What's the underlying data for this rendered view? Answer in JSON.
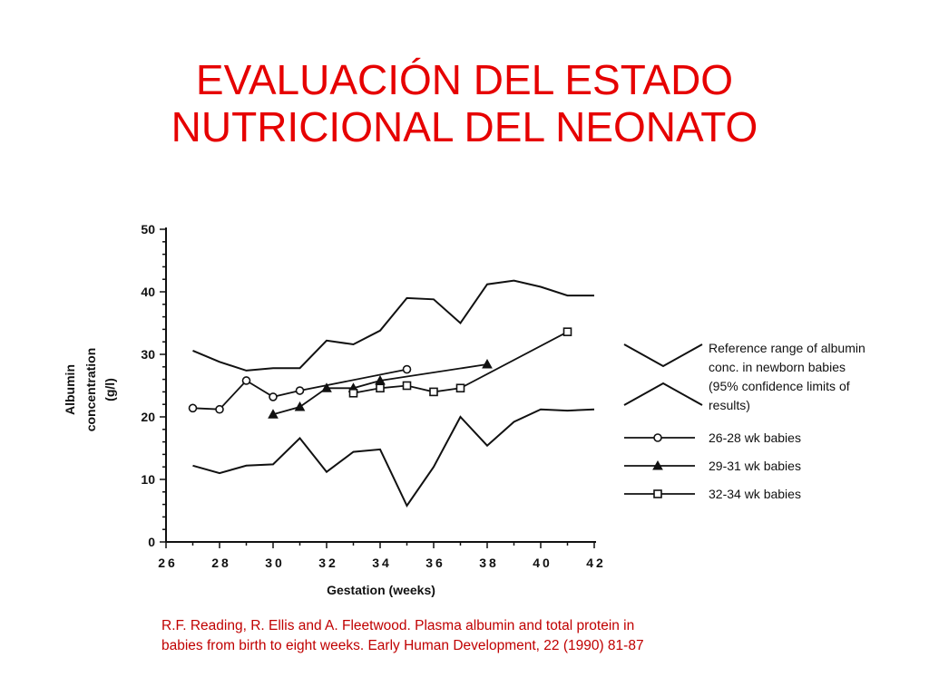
{
  "slide": {
    "title_line1": "EVALUACIÓN DEL ESTADO",
    "title_line2": "NUTRICIONAL DEL NEONATO",
    "citation_line1": "R.F. Reading, R. Ellis and A. Fleetwood. Plasma albumin and total protein in",
    "citation_line2": "babies from birth to eight weeks. Early Human Development, 22 (1990) 81-87",
    "title_color": "#e60000",
    "citation_color": "#c00000"
  },
  "chart_data": {
    "type": "line",
    "xlabel": "Gestation (weeks)",
    "ylabel_lines": [
      "Albumin",
      "concentration",
      "(g/l)"
    ],
    "xlim": [
      26,
      42
    ],
    "ylim": [
      0,
      50
    ],
    "xticks": [
      26,
      28,
      30,
      32,
      34,
      36,
      38,
      40,
      42
    ],
    "yticks": [
      0,
      10,
      20,
      30,
      40,
      50
    ],
    "grid": false,
    "legend_position": "right",
    "reference_range": {
      "label_lines": [
        "Reference range of albumin",
        "conc. in newborn babies",
        "(95% confidence limits of",
        "results)"
      ],
      "upper": [
        [
          27,
          30.6
        ],
        [
          28,
          28.8
        ],
        [
          29,
          27.4
        ],
        [
          30,
          27.8
        ],
        [
          31,
          27.8
        ],
        [
          32,
          32.2
        ],
        [
          33,
          31.6
        ],
        [
          34,
          33.8
        ],
        [
          35,
          39.0
        ],
        [
          36,
          38.8
        ],
        [
          37,
          35.0
        ],
        [
          38,
          41.2
        ],
        [
          39,
          41.8
        ],
        [
          40,
          40.8
        ],
        [
          41,
          39.4
        ],
        [
          42,
          39.4
        ]
      ],
      "lower": [
        [
          27,
          12.2
        ],
        [
          28,
          11.0
        ],
        [
          29,
          12.2
        ],
        [
          30,
          12.4
        ],
        [
          31,
          16.6
        ],
        [
          32,
          11.2
        ],
        [
          33,
          14.4
        ],
        [
          34,
          14.8
        ],
        [
          35,
          5.8
        ],
        [
          36,
          12.0
        ],
        [
          37,
          20.0
        ],
        [
          38,
          15.4
        ],
        [
          39,
          19.2
        ],
        [
          40,
          21.2
        ],
        [
          41,
          21.0
        ],
        [
          42,
          21.2
        ]
      ]
    },
    "series": [
      {
        "name": "26-28 wk babies",
        "marker": "circle",
        "points": [
          [
            27,
            21.4
          ],
          [
            28,
            21.2
          ],
          [
            29,
            25.8
          ],
          [
            30,
            23.2
          ],
          [
            31,
            24.2
          ],
          [
            35,
            27.6
          ]
        ]
      },
      {
        "name": "29-31 wk babies",
        "marker": "triangle",
        "points": [
          [
            30,
            20.4
          ],
          [
            31,
            21.6
          ],
          [
            32,
            24.6
          ],
          [
            33,
            24.6
          ],
          [
            34,
            25.8
          ],
          [
            38,
            28.4
          ]
        ]
      },
      {
        "name": "32-34 wk babies",
        "marker": "square",
        "points": [
          [
            33,
            23.8
          ],
          [
            34,
            24.6
          ],
          [
            35,
            25.0
          ],
          [
            36,
            24.0
          ],
          [
            37,
            24.6
          ],
          [
            41,
            33.6
          ]
        ]
      }
    ]
  }
}
